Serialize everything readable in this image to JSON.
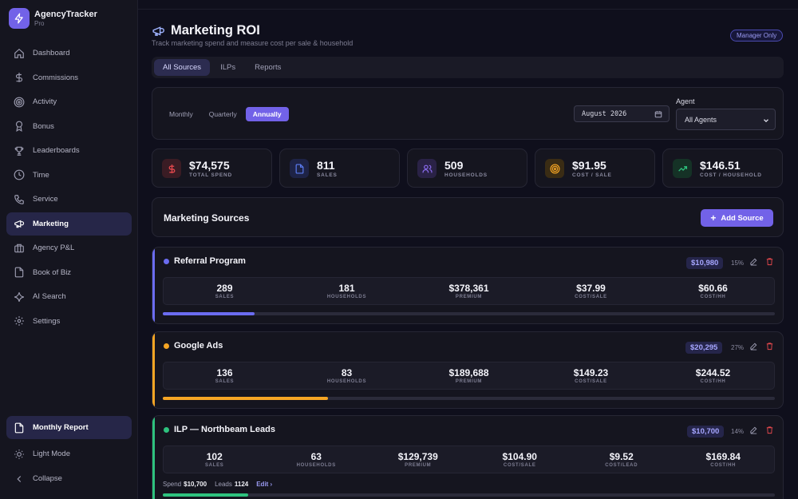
{
  "app": {
    "name": "AgencyTracker",
    "tier": "Pro"
  },
  "sidebar": {
    "items": [
      {
        "label": "Dashboard",
        "icon": "home-icon"
      },
      {
        "label": "Commissions",
        "icon": "dollar-icon"
      },
      {
        "label": "Activity",
        "icon": "target-icon"
      },
      {
        "label": "Bonus",
        "icon": "award-icon"
      },
      {
        "label": "Leaderboards",
        "icon": "trophy-icon"
      },
      {
        "label": "Time",
        "icon": "clock-icon"
      },
      {
        "label": "Service",
        "icon": "phone-icon"
      },
      {
        "label": "Marketing",
        "icon": "megaphone-icon",
        "active": true
      },
      {
        "label": "Agency P&L",
        "icon": "briefcase-icon"
      },
      {
        "label": "Book of Biz",
        "icon": "file-icon"
      },
      {
        "label": "AI Search",
        "icon": "sparkle-icon"
      },
      {
        "label": "Settings",
        "icon": "gear-icon"
      }
    ],
    "monthly_report": "Monthly Report",
    "light_mode": "Light Mode",
    "collapse": "Collapse"
  },
  "page": {
    "title": "Marketing ROI",
    "subtitle": "Track marketing spend and measure cost per sale & household",
    "badge": "Manager Only"
  },
  "tabs": [
    "All Sources",
    "ILPs",
    "Reports"
  ],
  "filters": {
    "periods": [
      "Monthly",
      "Quarterly",
      "Annually"
    ],
    "active_period": "Annually",
    "date_value": "August 2026",
    "agent_label": "Agent",
    "agent_value": "All Agents"
  },
  "stats": [
    {
      "value": "$74,575",
      "label": "TOTAL SPEND",
      "icon": "dollar-icon",
      "color": "#e5484d"
    },
    {
      "value": "811",
      "label": "SALES",
      "icon": "file-icon",
      "color": "#5b7cf0"
    },
    {
      "value": "509",
      "label": "HOUSEHOLDS",
      "icon": "users-icon",
      "color": "#8b6cf0"
    },
    {
      "value": "$91.95",
      "label": "COST / SALE",
      "icon": "target-icon",
      "color": "#f5a524"
    },
    {
      "value": "$146.51",
      "label": "COST / HOUSEHOLD",
      "icon": "trend-up-icon",
      "color": "#2ec27e"
    }
  ],
  "sources_section": {
    "title": "Marketing Sources",
    "add_label": "Add Source"
  },
  "sources": [
    {
      "name": "Referral Program",
      "color": "#6b6cf0",
      "spend": "$10,980",
      "pct": "15%",
      "progress": 0.15,
      "metrics": [
        {
          "value": "289",
          "label": "SALES"
        },
        {
          "value": "181",
          "label": "HOUSEHOLDS"
        },
        {
          "value": "$378,361",
          "label": "PREMIUM"
        },
        {
          "value": "$37.99",
          "label": "COST/SALE"
        },
        {
          "value": "$60.66",
          "label": "COST/HH"
        }
      ]
    },
    {
      "name": "Google Ads",
      "color": "#f5a524",
      "spend": "$20,295",
      "pct": "27%",
      "progress": 0.27,
      "metrics": [
        {
          "value": "136",
          "label": "SALES"
        },
        {
          "value": "83",
          "label": "HOUSEHOLDS"
        },
        {
          "value": "$189,688",
          "label": "PREMIUM"
        },
        {
          "value": "$149.23",
          "label": "COST/SALE"
        },
        {
          "value": "$244.52",
          "label": "COST/HH"
        }
      ]
    },
    {
      "name": "ILP — Northbeam Leads",
      "color": "#2ec27e",
      "spend": "$10,700",
      "pct": "14%",
      "progress": 0.14,
      "metrics": [
        {
          "value": "102",
          "label": "SALES"
        },
        {
          "value": "63",
          "label": "HOUSEHOLDS"
        },
        {
          "value": "$129,739",
          "label": "PREMIUM"
        },
        {
          "value": "$104.90",
          "label": "COST/SALE"
        },
        {
          "value": "$9.52",
          "label": "COST/LEAD"
        },
        {
          "value": "$169.84",
          "label": "COST/HH"
        }
      ],
      "footer": {
        "spend_label": "Spend",
        "spend": "$10,700",
        "leads_label": "Leads",
        "leads": "1124",
        "edit": "Edit ›"
      }
    }
  ]
}
